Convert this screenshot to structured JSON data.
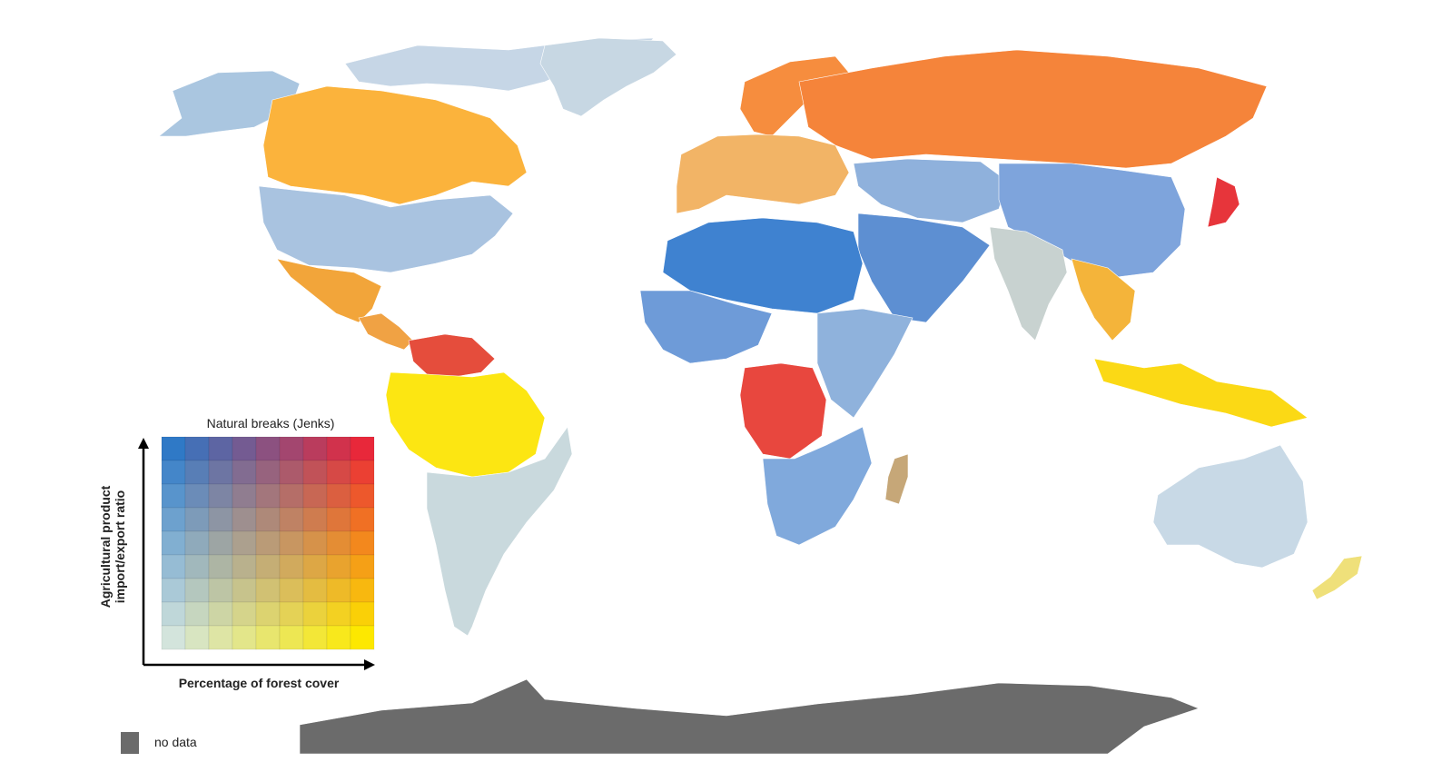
{
  "legend": {
    "title": "Natural breaks (Jenks)",
    "y_axis_label_line1": "Agricultural product",
    "y_axis_label_line2": "import/export ratio",
    "x_axis_label": "Percentage of forest cover",
    "grid_size": 9,
    "corner_colors": {
      "bottom_left": "#d3e4dc",
      "bottom_right": "#fde800",
      "top_left": "#2f79c6",
      "top_right": "#e8283a"
    },
    "no_data_label": "no data",
    "no_data_color": "#6b6b6b"
  },
  "regions": [
    {
      "name": "canada",
      "color": "#fbb33c"
    },
    {
      "name": "alaska",
      "color": "#aac6e0"
    },
    {
      "name": "arctic-islands",
      "color": "#c6d6e6"
    },
    {
      "name": "greenland",
      "color": "#c7d7e3"
    },
    {
      "name": "usa",
      "color": "#a9c3e0"
    },
    {
      "name": "mexico",
      "color": "#f2a53a"
    },
    {
      "name": "central-america",
      "color": "#f0a244"
    },
    {
      "name": "amazon",
      "color": "#fce612"
    },
    {
      "name": "venezuela",
      "color": "#e54d3c"
    },
    {
      "name": "south-america-south",
      "color": "#c9d9dd"
    },
    {
      "name": "europe",
      "color": "#f2b466"
    },
    {
      "name": "scandinavia",
      "color": "#f68d3e"
    },
    {
      "name": "russia",
      "color": "#f5843a"
    },
    {
      "name": "central-asia",
      "color": "#8fb1dc"
    },
    {
      "name": "china",
      "color": "#7ea4dc"
    },
    {
      "name": "japan",
      "color": "#e7353b"
    },
    {
      "name": "india",
      "color": "#c8d2d0"
    },
    {
      "name": "southeast-asia",
      "color": "#f4b43a"
    },
    {
      "name": "indonesia",
      "color": "#fbd915"
    },
    {
      "name": "middle-east",
      "color": "#5d8fd2"
    },
    {
      "name": "north-africa",
      "color": "#3f82d0"
    },
    {
      "name": "west-africa",
      "color": "#6e9bd8"
    },
    {
      "name": "central-africa",
      "color": "#e8473e"
    },
    {
      "name": "east-africa",
      "color": "#8fb2dc"
    },
    {
      "name": "southern-africa",
      "color": "#80a9dc"
    },
    {
      "name": "madagascar",
      "color": "#c6a778"
    },
    {
      "name": "australia",
      "color": "#c8d9e6"
    },
    {
      "name": "new-zealand",
      "color": "#efe07a"
    },
    {
      "name": "antarctica",
      "color": "#6b6b6b"
    }
  ]
}
